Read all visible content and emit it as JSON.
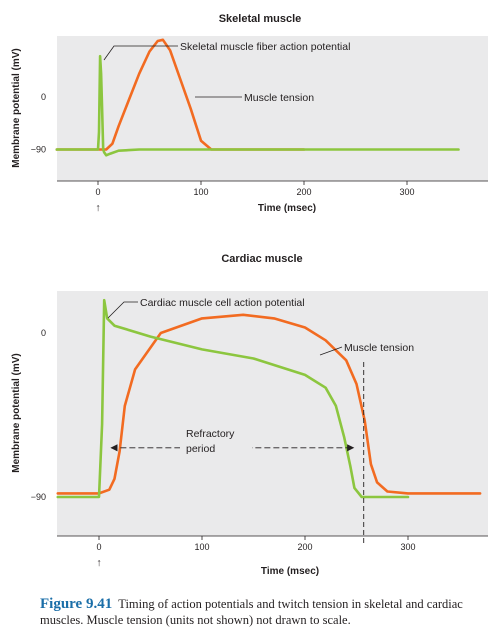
{
  "chart_data": [
    {
      "type": "line",
      "title": "Skeletal muscle",
      "xlabel": "Time (msec)",
      "ylabel": "Membrane potential (mV)",
      "xlim": [
        -40,
        370
      ],
      "ylim": [
        -150,
        110
      ],
      "x_ticks": [
        "0",
        "100",
        "200",
        "300"
      ],
      "y_ticks": [
        "0",
        "−90"
      ],
      "stimulus_marker": "↑",
      "series": [
        {
          "name": "Skeletal muscle fiber action potential",
          "color": "#8cc63f",
          "x": [
            -40,
            0,
            1,
            2,
            3,
            4,
            5,
            6,
            8,
            12,
            20,
            40,
            100,
            200,
            300,
            350
          ],
          "y": [
            -90,
            -90,
            -60,
            70,
            40,
            -20,
            -90,
            -95,
            -100,
            -97,
            -92,
            -90,
            -90,
            -90,
            -90,
            -90
          ]
        },
        {
          "name": "Muscle tension",
          "color": "#f26b21",
          "x": [
            -40,
            8,
            14,
            20,
            30,
            40,
            50,
            58,
            63,
            70,
            80,
            90,
            100,
            110,
            140,
            200
          ],
          "y": [
            -90,
            -90,
            -80,
            -50,
            -5,
            40,
            78,
            96,
            98,
            80,
            30,
            -20,
            -75,
            -90,
            -90,
            -90
          ]
        }
      ]
    },
    {
      "type": "line",
      "title": "Cardiac muscle",
      "xlabel": "Time (msec)",
      "ylabel": "Membrane potential (mV)",
      "xlim": [
        -40,
        370
      ],
      "ylim": [
        -130,
        40
      ],
      "x_ticks": [
        "0",
        "100",
        "200",
        "300"
      ],
      "y_ticks": [
        "0",
        "−90"
      ],
      "stimulus_marker": "↑",
      "series": [
        {
          "name": "Cardiac muscle cell action potential",
          "color": "#8cc63f",
          "x": [
            -40,
            0,
            3,
            5,
            8,
            15,
            50,
            100,
            150,
            200,
            220,
            230,
            238,
            244,
            248,
            255,
            270,
            300
          ],
          "y": [
            -90,
            -90,
            -50,
            18,
            8,
            4,
            -2,
            -9,
            -14,
            -23,
            -30,
            -40,
            -57,
            -73,
            -85,
            -90,
            -90,
            -90
          ],
          "markers": [
            {
              "x": [
                12,
                247
              ],
              "y": [
                -63,
                -63
              ]
            }
          ]
        },
        {
          "name": "Muscle tension",
          "color": "#f26b21",
          "x": [
            -40,
            0,
            10,
            15,
            20,
            25,
            35,
            60,
            100,
            140,
            170,
            200,
            220,
            240,
            250,
            258,
            264,
            270,
            280,
            300,
            370
          ],
          "y": [
            -88,
            -88,
            -86,
            -80,
            -65,
            -40,
            -20,
            0,
            8,
            10,
            8,
            3,
            -4,
            -15,
            -28,
            -48,
            -72,
            -82,
            -87,
            -88,
            -88
          ]
        }
      ],
      "refractory_end_marker": {
        "x": 257
      },
      "annotations": [
        "Refractory",
        "period"
      ]
    }
  ],
  "caption": {
    "label": "Figure 9.41",
    "text": "Timing of action potentials and twitch tension in skeletal and cardiac muscles. Muscle tension (units not shown) not drawn to scale."
  }
}
